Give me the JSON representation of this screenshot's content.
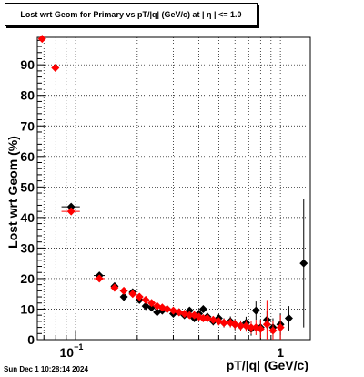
{
  "timestamp": "Sun Dec  1 10:28:14 2024",
  "chart_data": {
    "type": "scatter",
    "title": "Lost wrt Geom for Primary vs pT/|q| (GeV/c) at |  η  | <= 1.0",
    "xlabel": "pT/|q| (GeV/c)",
    "ylabel": "Lost wrt Geom (%)",
    "x_scale": "log",
    "xlim": [
      0.065,
      1.4
    ],
    "ylim": [
      0,
      99
    ],
    "grid": true,
    "x_ticks": [
      {
        "value": 0.1,
        "base": "10",
        "exp": "−1"
      },
      {
        "value": 1,
        "base": "1",
        "exp": ""
      }
    ],
    "y_ticks": [
      0,
      10,
      20,
      30,
      40,
      50,
      60,
      70,
      80,
      90
    ],
    "series": [
      {
        "color": "#000000",
        "marker": "diamond",
        "points": [
          {
            "x": 0.0951,
            "y": 43.5,
            "xerr": 0.0098,
            "yerr": 0.8
          },
          {
            "x": 0.1306,
            "y": 21.0,
            "xerr": 0.008,
            "yerr": 0.6
          },
          {
            "x": 0.155,
            "y": 17.5,
            "yerr": 0.5
          },
          {
            "x": 0.172,
            "y": 14.0,
            "yerr": 0.5
          },
          {
            "x": 0.19,
            "y": 15.5,
            "yerr": 0.6
          },
          {
            "x": 0.205,
            "y": 13.0,
            "yerr": 0.6
          },
          {
            "x": 0.22,
            "y": 11.0,
            "yerr": 0.6
          },
          {
            "x": 0.235,
            "y": 10.5,
            "yerr": 0.7
          },
          {
            "x": 0.25,
            "y": 9.0,
            "yerr": 0.7
          },
          {
            "x": 0.265,
            "y": 9.5,
            "yerr": 0.8
          },
          {
            "x": 0.28,
            "y": 10.0,
            "yerr": 0.8
          },
          {
            "x": 0.3,
            "y": 8.5,
            "yerr": 0.9
          },
          {
            "x": 0.32,
            "y": 9.0,
            "yerr": 0.9
          },
          {
            "x": 0.34,
            "y": 8.0,
            "yerr": 1.0
          },
          {
            "x": 0.36,
            "y": 9.5,
            "yerr": 1.0
          },
          {
            "x": 0.38,
            "y": 7.0,
            "yerr": 1.1
          },
          {
            "x": 0.4,
            "y": 8.5,
            "yerr": 1.1
          },
          {
            "x": 0.42,
            "y": 10.0,
            "yerr": 1.2
          },
          {
            "x": 0.44,
            "y": 7.5,
            "yerr": 1.2
          },
          {
            "x": 0.47,
            "y": 6.0,
            "yerr": 1.3
          },
          {
            "x": 0.5,
            "y": 7.0,
            "yerr": 1.4
          },
          {
            "x": 0.53,
            "y": 5.5,
            "yerr": 1.5
          },
          {
            "x": 0.57,
            "y": 6.0,
            "yerr": 1.6
          },
          {
            "x": 0.6,
            "y": 5.0,
            "yerr": 1.7
          },
          {
            "x": 0.64,
            "y": 4.5,
            "yerr": 1.8
          },
          {
            "x": 0.68,
            "y": 5.5,
            "yerr": 2.0
          },
          {
            "x": 0.72,
            "y": 3.5,
            "yerr": 2.2
          },
          {
            "x": 0.76,
            "y": 9.5,
            "yerr": 3.0
          },
          {
            "x": 0.8,
            "y": 4.0,
            "yerr": 2.5
          },
          {
            "x": 0.86,
            "y": 6.5,
            "yerr": 3.0
          },
          {
            "x": 0.92,
            "y": 4.0,
            "yerr": 3.0
          },
          {
            "x": 1.0,
            "y": 5.0,
            "yerr": 3.5
          },
          {
            "x": 1.1,
            "y": 7.0,
            "yerr": 4.0
          },
          {
            "x": 1.3,
            "y": 25.0,
            "yerr": 21.0
          }
        ]
      },
      {
        "color": "#ff0000",
        "marker": "diamond",
        "points": [
          {
            "x": 0.0686,
            "y": 98.5,
            "xerr": 0.0024,
            "yerr": 0.3
          },
          {
            "x": 0.0796,
            "y": 89.0,
            "xerr": 0.003,
            "yerr": 0.5
          },
          {
            "x": 0.0951,
            "y": 42.0,
            "xerr": 0.0098,
            "yerr": 0.8
          },
          {
            "x": 0.1306,
            "y": 20.0,
            "xerr": 0.008,
            "yerr": 0.6
          },
          {
            "x": 0.155,
            "y": 17.0,
            "yerr": 0.5
          },
          {
            "x": 0.172,
            "y": 16.0,
            "yerr": 0.5
          },
          {
            "x": 0.19,
            "y": 15.0,
            "yerr": 0.5
          },
          {
            "x": 0.205,
            "y": 14.0,
            "yerr": 0.5
          },
          {
            "x": 0.22,
            "y": 13.0,
            "yerr": 0.5
          },
          {
            "x": 0.235,
            "y": 12.0,
            "yerr": 0.6
          },
          {
            "x": 0.25,
            "y": 11.0,
            "yerr": 0.6
          },
          {
            "x": 0.265,
            "y": 10.5,
            "yerr": 0.6
          },
          {
            "x": 0.28,
            "y": 10.0,
            "yerr": 0.7
          },
          {
            "x": 0.3,
            "y": 9.5,
            "yerr": 0.7
          },
          {
            "x": 0.32,
            "y": 9.0,
            "yerr": 0.8
          },
          {
            "x": 0.34,
            "y": 8.5,
            "yerr": 0.8
          },
          {
            "x": 0.36,
            "y": 8.0,
            "yerr": 0.9
          },
          {
            "x": 0.38,
            "y": 8.0,
            "yerr": 0.9
          },
          {
            "x": 0.4,
            "y": 7.5,
            "yerr": 1.0
          },
          {
            "x": 0.42,
            "y": 7.0,
            "yerr": 1.0
          },
          {
            "x": 0.44,
            "y": 7.0,
            "yerr": 1.1
          },
          {
            "x": 0.47,
            "y": 6.5,
            "yerr": 1.2
          },
          {
            "x": 0.5,
            "y": 6.0,
            "yerr": 1.3
          },
          {
            "x": 0.53,
            "y": 5.5,
            "yerr": 1.4
          },
          {
            "x": 0.57,
            "y": 5.5,
            "yerr": 1.5
          },
          {
            "x": 0.6,
            "y": 5.0,
            "yerr": 1.6
          },
          {
            "x": 0.64,
            "y": 4.5,
            "yerr": 1.7
          },
          {
            "x": 0.68,
            "y": 4.5,
            "yerr": 1.9
          },
          {
            "x": 0.72,
            "y": 4.0,
            "yerr": 2.1
          },
          {
            "x": 0.76,
            "y": 4.0,
            "yerr": 2.5
          },
          {
            "x": 0.8,
            "y": 3.5,
            "yerr": 3.0
          },
          {
            "x": 0.86,
            "y": 5.0,
            "yerr": 8.0
          },
          {
            "x": 0.92,
            "y": 3.0,
            "yerr": 3.0
          },
          {
            "x": 1.0,
            "y": 4.0,
            "yerr": 4.0
          }
        ]
      }
    ]
  }
}
